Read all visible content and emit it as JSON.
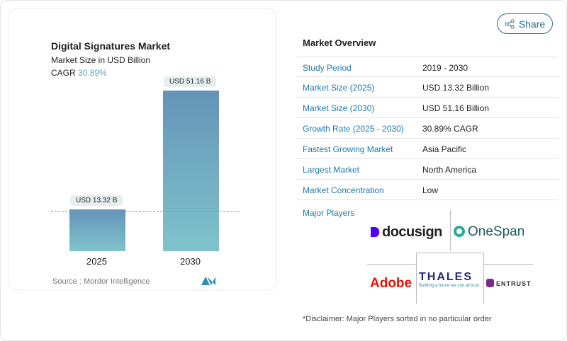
{
  "chart": {
    "title": "Digital Signatures Market",
    "subtitle": "Market Size in USD Billion",
    "cagr_label": "CAGR",
    "cagr_value": "30.89%",
    "source": "Source :  Mordor Intelligence"
  },
  "chart_data": {
    "type": "bar",
    "categories": [
      "2025",
      "2030"
    ],
    "values": [
      13.32,
      51.16
    ],
    "data_labels": [
      "USD 13.32 B",
      "USD 51.16 B"
    ],
    "title": "Digital Signatures Market",
    "ylabel": "Market Size in USD Billion",
    "colors": [
      "#6494b8",
      "#7fc3cb"
    ]
  },
  "share": {
    "label": "Share",
    "icon": "share-icon"
  },
  "overview": {
    "title": "Market Overview",
    "rows": [
      {
        "k": "Study Period",
        "v": "2019 - 2030"
      },
      {
        "k": "Market Size (2025)",
        "v": "USD 13.32 Billion"
      },
      {
        "k": "Market Size (2030)",
        "v": "USD 51.16 Billion"
      },
      {
        "k": "Growth Rate (2025 - 2030)",
        "v": "30.89% CAGR"
      },
      {
        "k": "Fastest Growing Market",
        "v": "Asia Pacific"
      },
      {
        "k": "Largest Market",
        "v": "North America"
      },
      {
        "k": "Market Concentration",
        "v": "Low"
      }
    ]
  },
  "players": {
    "title": "Major Players",
    "logos": [
      "docusign",
      "OneSpan",
      "Adobe",
      "THALES",
      "Building a future we can all trust",
      "ENTRUST"
    ],
    "disclaimer": "*Disclaimer: Major Players sorted in no particular order"
  }
}
